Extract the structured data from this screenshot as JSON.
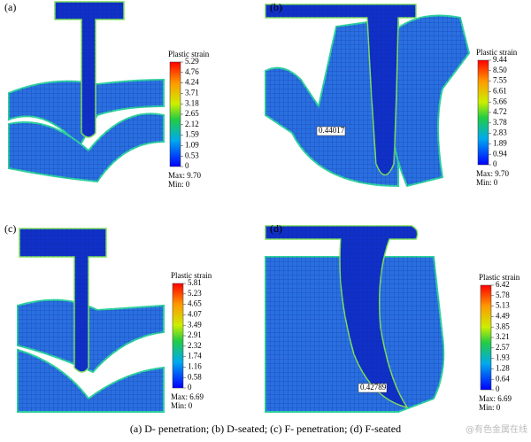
{
  "panels": [
    {
      "label": "(a)",
      "legend_title": "Plastic strain",
      "ticks": [
        "5.29",
        "4.76",
        "4.24",
        "3.71",
        "3.18",
        "2.65",
        "2.12",
        "1.59",
        "1.09",
        "0.53",
        "0"
      ],
      "max": "Max: 9.70",
      "min": "Min: 0"
    },
    {
      "label": "(b)",
      "legend_title": "Plastic strain",
      "ticks": [
        "9.44",
        "8.50",
        "7.55",
        "6.61",
        "5.66",
        "4.72",
        "3.78",
        "2.83",
        "1.89",
        "0.94",
        "0"
      ],
      "max": "Max: 9.70",
      "min": "Min: 0",
      "probe": "0.44017"
    },
    {
      "label": "(c)",
      "legend_title": "Plastic strain",
      "ticks": [
        "5.81",
        "5.23",
        "4.65",
        "4.07",
        "3.49",
        "2.91",
        "2.32",
        "1.74",
        "1.16",
        "0.58",
        "0"
      ],
      "max": "Max: 6.69",
      "min": "Min: 0"
    },
    {
      "label": "(d)",
      "legend_title": "Plastic strain",
      "ticks": [
        "6.42",
        "5.78",
        "5.13",
        "4.49",
        "3.85",
        "3.21",
        "2.57",
        "1.93",
        "1.28",
        "0.64",
        "0"
      ],
      "max": "Max: 6.69",
      "min": "Min: 0",
      "probe": "0.42789"
    }
  ],
  "caption": "(a)  D- penetration; (b) D-seated; (c) F- penetration; (d) F-seated",
  "watermark": "@有色金属在线"
}
